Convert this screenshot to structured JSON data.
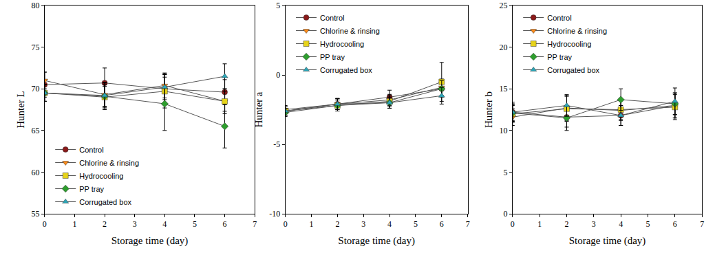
{
  "chart_data": [
    {
      "type": "line",
      "x_label": "Storage time (day)",
      "y_label": "Hunter L",
      "x": [
        0,
        2,
        4,
        6
      ],
      "xlim": [
        0,
        7
      ],
      "xticks": [
        0,
        1,
        2,
        3,
        4,
        5,
        6,
        7
      ],
      "ylim": [
        55,
        80
      ],
      "yticks": [
        55,
        60,
        65,
        70,
        75,
        80
      ],
      "grid": false,
      "legend": "lower left",
      "series": [
        {
          "name": "Control",
          "color": "#8b1a1a",
          "marker": "circle",
          "values": [
            70.5,
            70.7,
            70.0,
            69.6
          ],
          "errors": [
            1.5,
            1.8,
            1.8,
            1.5
          ]
        },
        {
          "name": "Chlorine & rinsing",
          "color": "#ff8c1a",
          "marker": "triangle-down",
          "values": [
            71.0,
            69.3,
            70.4,
            68.5
          ],
          "errors": [
            1.0,
            1.5,
            1.5,
            1.2
          ]
        },
        {
          "name": "Hydrocooling",
          "color": "#e6d31a",
          "marker": "square",
          "values": [
            69.5,
            69.0,
            69.7,
            68.5
          ],
          "errors": [
            1.0,
            1.5,
            2.0,
            1.5
          ]
        },
        {
          "name": "PP tray",
          "color": "#2e9e2e",
          "marker": "diamond",
          "values": [
            69.5,
            69.1,
            68.2,
            65.5
          ],
          "errors": [
            1.0,
            1.2,
            3.2,
            2.6
          ]
        },
        {
          "name": "Corrugated box",
          "color": "#2aa6b8",
          "marker": "triangle-up",
          "values": [
            69.5,
            69.2,
            70.2,
            71.5
          ],
          "errors": [
            1.0,
            1.5,
            1.5,
            1.5
          ]
        }
      ]
    },
    {
      "type": "line",
      "x_label": "Storage time (day)",
      "y_label": "Hunter a",
      "x": [
        0,
        2,
        4,
        6
      ],
      "xlim": [
        0,
        7
      ],
      "xticks": [
        0,
        1,
        2,
        3,
        4,
        5,
        6,
        7
      ],
      "ylim": [
        -10,
        5
      ],
      "yticks": [
        -10,
        -5,
        0,
        5
      ],
      "grid": false,
      "legend": "upper left",
      "series": [
        {
          "name": "Control",
          "color": "#8b1a1a",
          "marker": "circle",
          "values": [
            -2.6,
            -2.1,
            -1.6,
            -1.0
          ],
          "errors": [
            0.3,
            0.4,
            0.5,
            0.5
          ]
        },
        {
          "name": "Chlorine & rinsing",
          "color": "#ff8c1a",
          "marker": "triangle-down",
          "values": [
            -2.5,
            -2.1,
            -1.8,
            -0.9
          ],
          "errors": [
            0.3,
            0.4,
            0.4,
            0.6
          ]
        },
        {
          "name": "Hydrocooling",
          "color": "#e6d31a",
          "marker": "square",
          "values": [
            -2.6,
            -2.2,
            -1.9,
            -0.5
          ],
          "errors": [
            0.3,
            0.4,
            0.4,
            1.4
          ]
        },
        {
          "name": "PP tray",
          "color": "#2e9e2e",
          "marker": "diamond",
          "values": [
            -2.7,
            -2.2,
            -2.0,
            -1.0
          ],
          "errors": [
            0.3,
            0.4,
            0.4,
            0.6
          ]
        },
        {
          "name": "Corrugated box",
          "color": "#2aa6b8",
          "marker": "triangle-up",
          "values": [
            -2.6,
            -2.1,
            -2.0,
            -1.5
          ],
          "errors": [
            0.3,
            0.4,
            0.4,
            0.6
          ]
        }
      ]
    },
    {
      "type": "line",
      "x_label": "Storage time (day)",
      "y_label": "Hunter b",
      "x": [
        0,
        2,
        4,
        6
      ],
      "xlim": [
        0,
        7
      ],
      "xticks": [
        0,
        1,
        2,
        3,
        4,
        5,
        6,
        7
      ],
      "ylim": [
        0,
        25
      ],
      "yticks": [
        0,
        5,
        10,
        15,
        20,
        25
      ],
      "grid": false,
      "legend": "upper left",
      "series": [
        {
          "name": "Control",
          "color": "#8b1a1a",
          "marker": "circle",
          "values": [
            12.2,
            11.6,
            11.8,
            13.0
          ],
          "errors": [
            1.2,
            1.2,
            1.2,
            1.5
          ]
        },
        {
          "name": "Chlorine & rinsing",
          "color": "#ff8c1a",
          "marker": "triangle-down",
          "values": [
            11.6,
            12.7,
            12.4,
            13.0
          ],
          "errors": [
            1.0,
            1.5,
            1.2,
            1.5
          ]
        },
        {
          "name": "Hydrocooling",
          "color": "#e6d31a",
          "marker": "square",
          "values": [
            12.0,
            12.6,
            12.5,
            12.8
          ],
          "errors": [
            1.0,
            1.5,
            1.2,
            1.5
          ]
        },
        {
          "name": "PP tray",
          "color": "#2e9e2e",
          "marker": "diamond",
          "values": [
            12.1,
            11.5,
            13.7,
            13.2
          ],
          "errors": [
            1.0,
            1.5,
            1.3,
            1.3
          ]
        },
        {
          "name": "Corrugated box",
          "color": "#2aa6b8",
          "marker": "triangle-up",
          "values": [
            12.2,
            13.0,
            11.8,
            13.5
          ],
          "errors": [
            1.0,
            1.3,
            1.2,
            1.6
          ]
        }
      ]
    }
  ]
}
